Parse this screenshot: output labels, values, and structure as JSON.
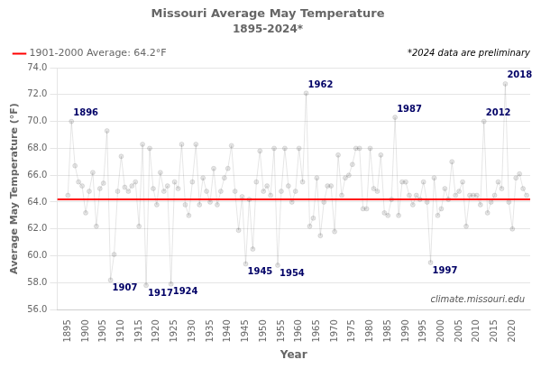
{
  "chart_data": {
    "type": "line",
    "title": "Missouri Average May Temperature",
    "subtitle": "1895-2024*",
    "x_label": "Year",
    "y_label": "Average May Temperature (°F)",
    "x": [
      1895,
      1896,
      1897,
      1898,
      1899,
      1900,
      1901,
      1902,
      1903,
      1904,
      1905,
      1906,
      1907,
      1908,
      1909,
      1910,
      1911,
      1912,
      1913,
      1914,
      1915,
      1916,
      1917,
      1918,
      1919,
      1920,
      1921,
      1922,
      1923,
      1924,
      1925,
      1926,
      1927,
      1928,
      1929,
      1930,
      1931,
      1932,
      1933,
      1934,
      1935,
      1936,
      1937,
      1938,
      1939,
      1940,
      1941,
      1942,
      1943,
      1944,
      1945,
      1946,
      1947,
      1948,
      1949,
      1950,
      1951,
      1952,
      1953,
      1954,
      1955,
      1956,
      1957,
      1958,
      1959,
      1960,
      1961,
      1962,
      1963,
      1964,
      1965,
      1966,
      1967,
      1968,
      1969,
      1970,
      1971,
      1972,
      1973,
      1974,
      1975,
      1976,
      1977,
      1978,
      1979,
      1980,
      1981,
      1982,
      1983,
      1984,
      1985,
      1986,
      1987,
      1988,
      1989,
      1990,
      1991,
      1992,
      1993,
      1994,
      1995,
      1996,
      1997,
      1998,
      1999,
      2000,
      2001,
      2002,
      2003,
      2004,
      2005,
      2006,
      2007,
      2008,
      2009,
      2010,
      2011,
      2012,
      2013,
      2014,
      2015,
      2016,
      2017,
      2018,
      2019,
      2020,
      2021,
      2022,
      2023,
      2024
    ],
    "series": [
      {
        "marker": "circle",
        "values": [
          64.5,
          70.0,
          66.7,
          65.5,
          65.2,
          63.2,
          64.8,
          66.2,
          62.2,
          65.0,
          65.4,
          69.3,
          58.2,
          60.1,
          64.8,
          67.4,
          65.1,
          64.8,
          65.2,
          65.5,
          62.2,
          68.3,
          57.8,
          68.0,
          65.0,
          63.8,
          66.2,
          64.8,
          65.2,
          57.9,
          65.5,
          65.0,
          68.3,
          63.8,
          63.0,
          65.5,
          68.3,
          63.8,
          65.8,
          64.8,
          64.0,
          66.5,
          63.8,
          64.8,
          65.8,
          66.5,
          68.2,
          64.8,
          61.9,
          64.4,
          59.4,
          64.2,
          60.5,
          65.5,
          67.8,
          64.8,
          65.2,
          64.5,
          68.0,
          59.3,
          64.8,
          68.0,
          65.2,
          64.0,
          64.8,
          68.0,
          65.5,
          72.1,
          62.2,
          62.8,
          65.8,
          61.5,
          64.0,
          65.2,
          65.2,
          61.8,
          67.5,
          64.5,
          65.8,
          66.0,
          66.8,
          68.0,
          68.0,
          63.5,
          63.5,
          68.0,
          65.0,
          64.8,
          67.5,
          63.2,
          63.0,
          64.2,
          70.3,
          63.0,
          65.5,
          65.5,
          64.5,
          63.8,
          64.5,
          64.2,
          65.5,
          64.0,
          59.5,
          65.8,
          63.0,
          63.5,
          65.0,
          64.2,
          67.0,
          64.5,
          64.8,
          65.5,
          62.2,
          64.5,
          64.5,
          64.5,
          63.8,
          70.0,
          63.2,
          64.0,
          64.5,
          65.5,
          65.0,
          72.8,
          64.0,
          62.0,
          65.8,
          66.1,
          65.0,
          64.5
        ]
      }
    ],
    "reference_lines": [
      {
        "value": 64.2,
        "label": "1901-2000 Average: 64.2°F",
        "color": "#FF0000"
      }
    ],
    "annotations": [
      {
        "text": "1896",
        "x": 1896,
        "y": 70.0
      },
      {
        "text": "1907",
        "x": 1907,
        "y": 58.2
      },
      {
        "text": "1917",
        "x": 1917,
        "y": 57.8
      },
      {
        "text": "1924",
        "x": 1924,
        "y": 57.9
      },
      {
        "text": "1945",
        "x": 1945,
        "y": 59.4
      },
      {
        "text": "1954",
        "x": 1954,
        "y": 59.3
      },
      {
        "text": "1962",
        "x": 1962,
        "y": 72.1
      },
      {
        "text": "1987",
        "x": 1987,
        "y": 70.3
      },
      {
        "text": "1997",
        "x": 1997,
        "y": 59.5
      },
      {
        "text": "2012",
        "x": 2012,
        "y": 70.0
      },
      {
        "text": "2018",
        "x": 2018,
        "y": 72.8
      }
    ],
    "note": "*2024 data are preliminary",
    "watermark": "climate.missouri.edu",
    "xlim": [
      1892,
      2025
    ],
    "xticks": [
      1895,
      1900,
      1905,
      1910,
      1915,
      1920,
      1925,
      1930,
      1935,
      1940,
      1945,
      1950,
      1955,
      1960,
      1965,
      1970,
      1975,
      1980,
      1985,
      1990,
      1995,
      2000,
      2005,
      2010,
      2015,
      2020
    ],
    "ylim": [
      56,
      74
    ],
    "yticks": [
      {
        "value": 56,
        "label": "56.0"
      },
      {
        "value": 58,
        "label": "58.0"
      },
      {
        "value": 60,
        "label": "60.0"
      },
      {
        "value": 62,
        "label": "62.0"
      },
      {
        "value": 64,
        "label": "64.0"
      },
      {
        "value": 66,
        "label": "66.0"
      },
      {
        "value": 68,
        "label": "68.0"
      },
      {
        "value": 70,
        "label": "70.0"
      },
      {
        "value": 72,
        "label": "72.0"
      },
      {
        "value": 74,
        "label": "74.0"
      }
    ],
    "grid": "y",
    "legend": "upper left"
  }
}
